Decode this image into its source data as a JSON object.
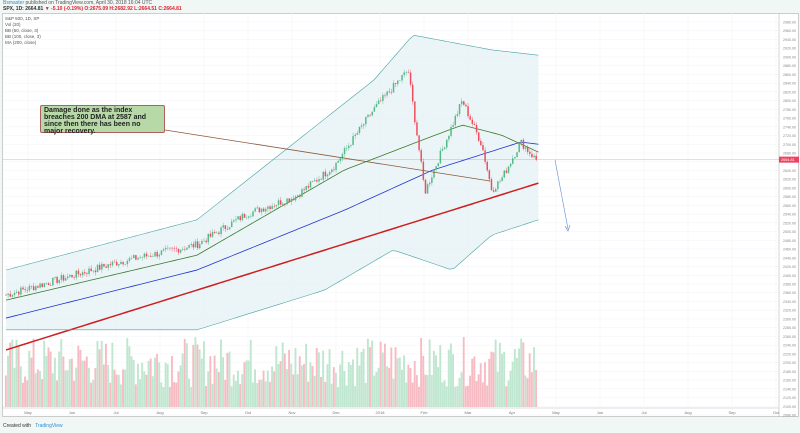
{
  "header": {
    "user": "Bsmaster",
    "published": "published on TradingView.com, April 30, 2018 16:04 UTC",
    "symbol": "SPX, 1D: 2664.81",
    "change": "▼ -5.10 (-0.19%)",
    "ohlc": "O:2675.09 H:2682.92 L:2664.51 C:2664.81"
  },
  "legend": [
    "S&P 500, 1D, SP",
    "Vol (20)",
    "BB (50, close, 3)",
    "BB (100, close, 3)",
    "MA (200, close)"
  ],
  "annotation": "Damage done as the index breaches 200 DMA at 2587 and since then there has been no major recovery.",
  "footer": {
    "created": "Created with",
    "brand": "TradingView"
  },
  "colors": {
    "up": "#53b987",
    "down": "#eb4d5c",
    "ma200": "#cc1f1f",
    "ma100": "#2233cc",
    "ma50": "#3a7a2a",
    "band": "#4aa3a3",
    "last": "#f04060"
  },
  "chart_data": {
    "type": "line",
    "title": "S&P 500, 1D",
    "x_tick_labels": [
      "May",
      "Jun",
      "Jul",
      "Aug",
      "Sep",
      "Oct",
      "Nov",
      "Dec",
      "2018",
      "Feb",
      "Mar",
      "Apr",
      "May",
      "Jun",
      "Jul",
      "Aug",
      "Sep",
      "Oct"
    ],
    "ylim": [
      2080,
      2998
    ],
    "y_ticks_step": 20,
    "last_price": "2664.81",
    "price_path": [
      [
        -0.5,
        2355
      ],
      [
        2.05,
        2430
      ],
      [
        3.84,
        2470
      ],
      [
        4.96,
        2540
      ],
      [
        6.07,
        2580
      ],
      [
        6.96,
        2650
      ],
      [
        7.86,
        2780
      ],
      [
        8.64,
        2870
      ],
      [
        9.02,
        2590
      ],
      [
        9.87,
        2800
      ],
      [
        10.31,
        2700
      ],
      [
        10.54,
        2595
      ],
      [
        10.76,
        2620
      ],
      [
        11.2,
        2705
      ],
      [
        11.54,
        2665
      ]
    ],
    "series": [
      {
        "name": "MA 200",
        "key": "ma200",
        "points": [
          [
            -0.5,
            2229
          ],
          [
            11.6,
            2611
          ]
        ]
      },
      {
        "name": "MA 100",
        "key": "ma100",
        "points": [
          [
            -0.5,
            2302
          ],
          [
            3.84,
            2412
          ],
          [
            7.19,
            2549
          ],
          [
            9.2,
            2641
          ],
          [
            11.2,
            2705
          ],
          [
            11.6,
            2700
          ]
        ]
      },
      {
        "name": "MA 50",
        "key": "ma50",
        "points": [
          [
            -0.5,
            2343
          ],
          [
            3.84,
            2446
          ],
          [
            7.19,
            2641
          ],
          [
            8.97,
            2710
          ],
          [
            9.87,
            2744
          ],
          [
            10.76,
            2721
          ],
          [
            11.6,
            2682
          ]
        ]
      },
      {
        "name": "BB upper",
        "key": "band",
        "points": [
          [
            -0.5,
            2412
          ],
          [
            3.84,
            2527
          ],
          [
            7.86,
            2847
          ],
          [
            8.75,
            2950
          ],
          [
            10.54,
            2916
          ],
          [
            11.6,
            2904
          ]
        ]
      },
      {
        "name": "BB lower",
        "key": "band",
        "points": [
          [
            -0.5,
            2275
          ],
          [
            3.84,
            2275
          ],
          [
            6.74,
            2366
          ],
          [
            8.3,
            2458
          ],
          [
            9.64,
            2412
          ],
          [
            10.54,
            2492
          ],
          [
            11.6,
            2527
          ]
        ]
      }
    ]
  }
}
